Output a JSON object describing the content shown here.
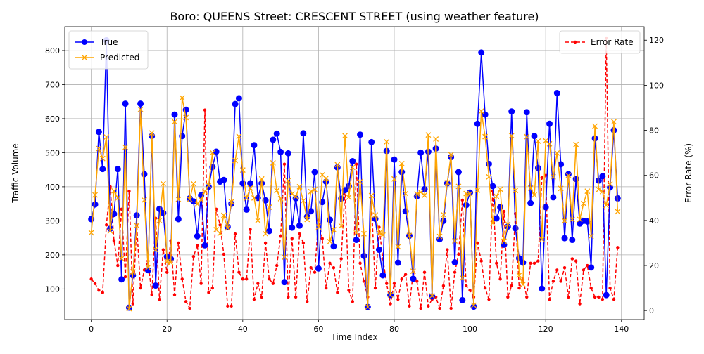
{
  "chart_data": {
    "type": "line",
    "title": "Boro: QUEENS Street: CRESCENT STREET (using weather feature)",
    "xlabel": "Time Index",
    "ylabel_left": "Traffic Volume",
    "ylabel_right": "Error Rate (%)",
    "xlim": [
      -7,
      146
    ],
    "ylim_left": [
      10,
      870
    ],
    "ylim_right": [
      -4,
      126
    ],
    "xticks": [
      0,
      20,
      40,
      60,
      80,
      100,
      120,
      140
    ],
    "yticks_left": [
      100,
      200,
      300,
      400,
      500,
      600,
      700,
      800
    ],
    "yticks_right": [
      0,
      20,
      40,
      60,
      80,
      100,
      120
    ],
    "grid": true,
    "legend_left": "upper-left",
    "legend_right": "upper-right",
    "x": [
      0,
      1,
      2,
      3,
      4,
      5,
      6,
      7,
      8,
      9,
      10,
      11,
      12,
      13,
      14,
      15,
      16,
      17,
      18,
      19,
      20,
      21,
      22,
      23,
      24,
      25,
      26,
      27,
      28,
      29,
      30,
      31,
      32,
      33,
      34,
      35,
      36,
      37,
      38,
      39,
      40,
      41,
      42,
      43,
      44,
      45,
      46,
      47,
      48,
      49,
      50,
      51,
      52,
      53,
      54,
      55,
      56,
      57,
      58,
      59,
      60,
      61,
      62,
      63,
      64,
      65,
      66,
      67,
      68,
      69,
      70,
      71,
      72,
      73,
      74,
      75,
      76,
      77,
      78,
      79,
      80,
      81,
      82,
      83,
      84,
      85,
      86,
      87,
      88,
      89,
      90,
      91,
      92,
      93,
      94,
      95,
      96,
      97,
      98,
      99,
      100,
      101,
      102,
      103,
      104,
      105,
      106,
      107,
      108,
      109,
      110,
      111,
      112,
      113,
      114,
      115,
      116,
      117,
      118,
      119,
      120,
      121,
      122,
      123,
      124,
      125,
      126,
      127,
      128,
      129,
      130,
      131,
      132,
      133,
      134,
      135,
      136,
      137,
      138,
      139
    ],
    "series": [
      {
        "name": "True",
        "color": "#0000ff",
        "marker": "circle",
        "style": "solid",
        "axis": "left",
        "values": [
          305,
          348,
          561,
          452,
          830,
          277,
          320,
          452,
          128,
          644,
          45,
          140,
          316,
          644,
          437,
          155,
          549,
          110,
          335,
          323,
          195,
          188,
          612,
          305,
          549,
          626,
          366,
          357,
          255,
          375,
          228,
          400,
          458,
          503,
          415,
          420,
          282,
          350,
          643,
          660,
          410,
          333,
          410,
          522,
          367,
          410,
          360,
          270,
          538,
          556,
          502,
          120,
          498,
          280,
          366,
          286,
          557,
          312,
          328,
          443,
          160,
          355,
          415,
          303,
          225,
          457,
          365,
          390,
          402,
          475,
          244,
          553,
          197,
          47,
          531,
          306,
          215,
          140,
          505,
          82,
          480,
          177,
          443,
          328,
          256,
          130,
          372,
          500,
          393,
          503,
          78,
          512,
          246,
          300,
          410,
          487,
          178,
          443,
          67,
          346,
          383,
          48,
          585,
          794,
          612,
          467,
          402,
          307,
          340,
          230,
          283,
          621,
          278,
          190,
          177,
          619,
          352,
          549,
          455,
          101,
          340,
          585,
          369,
          675,
          466,
          249,
          437,
          244,
          423,
          292,
          300,
          298,
          163,
          542,
          418,
          431,
          82,
          398,
          566,
          366
        ]
      },
      {
        "name": "Predicted",
        "color": "#ffa500",
        "marker": "x",
        "style": "solid",
        "axis": "left",
        "values": [
          265,
          376,
          512,
          483,
          546,
          270,
          388,
          367,
          189,
          516,
          42,
          150,
          286,
          627,
          361,
          163,
          558,
          215,
          301,
          409,
          180,
          177,
          591,
          363,
          661,
          603,
          363,
          409,
          349,
          362,
          386,
          404,
          500,
          274,
          263,
          316,
          279,
          356,
          477,
          548,
          449,
          367,
          396,
          367,
          301,
          423,
          262,
          340,
          470,
          389,
          365,
          193,
          418,
          379,
          371,
          400,
          359,
          304,
          386,
          392,
          282,
          435,
          425,
          239,
          274,
          465,
          285,
          550,
          369,
          457,
          264,
          415,
          262,
          47,
          374,
          317,
          264,
          258,
          532,
          82,
          423,
          224,
          468,
          380,
          257,
          152,
          379,
          384,
          375,
          552,
          80,
          540,
          254,
          318,
          412,
          494,
          241,
          401,
          132,
          380,
          379,
          52,
          390,
          622,
          547,
          429,
          293,
          372,
          393,
          240,
          290,
          550,
          389,
          140,
          113,
          547,
          396,
          376,
          534,
          245,
          535,
          526,
          429,
          499,
          395,
          300,
          433,
          304,
          524,
          304,
          351,
          387,
          255,
          578,
          392,
          386,
          345,
          408,
          591,
          327
        ]
      },
      {
        "name": "Error Rate",
        "color": "#ff0000",
        "marker": "dot",
        "style": "dashed",
        "axis": "right",
        "values": [
          14,
          12,
          9,
          8,
          38,
          55,
          31,
          20,
          45,
          15,
          53,
          3,
          38,
          10,
          18,
          22,
          7,
          41,
          5,
          27,
          17,
          31,
          7,
          30,
          14,
          4,
          1,
          24,
          29,
          12,
          89,
          8,
          10,
          45,
          38,
          25,
          2,
          2,
          34,
          17,
          14,
          14,
          36,
          5,
          12,
          6,
          30,
          14,
          12,
          20,
          33,
          65,
          6,
          32,
          6,
          34,
          30,
          4,
          19,
          17,
          40,
          32,
          10,
          21,
          19,
          8,
          23,
          54,
          9,
          4,
          65,
          21,
          13,
          6,
          48,
          10,
          37,
          23,
          12,
          3,
          12,
          5,
          14,
          16,
          2,
          17,
          13,
          1,
          17,
          2,
          5,
          6,
          1,
          11,
          27,
          1,
          17,
          25,
          49,
          11,
          9,
          6,
          30,
          22,
          10,
          5,
          53,
          21,
          14,
          44,
          6,
          11,
          43,
          10,
          14,
          6,
          21,
          21,
          22,
          59,
          60,
          5,
          13,
          18,
          13,
          19,
          6,
          23,
          22,
          3,
          18,
          20,
          10,
          6,
          6,
          5,
          121,
          10,
          5,
          28
        ]
      }
    ]
  }
}
